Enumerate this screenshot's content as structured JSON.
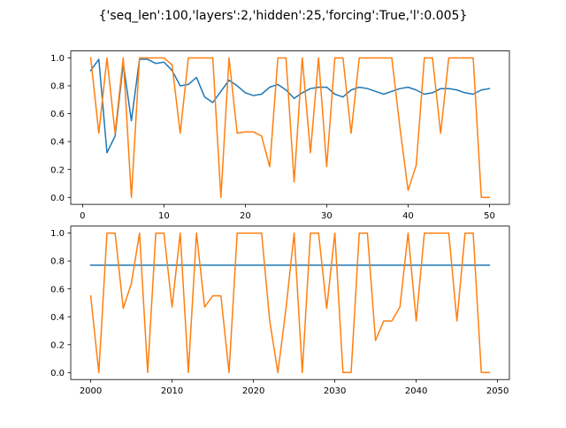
{
  "figure": {
    "title": "{'seq_len':100,'layers':2,'hidden':25,'forcing':True,'l':0.005}"
  },
  "colors": {
    "series1": "#1f77b4",
    "series2": "#ff7f0e",
    "axis": "#000000"
  },
  "chart_data": [
    {
      "type": "line",
      "title": "",
      "xlabel": "",
      "ylabel": "",
      "xlim": [
        -1.45,
        52.45
      ],
      "ylim": [
        -0.05,
        1.05
      ],
      "xticks": [
        0,
        10,
        20,
        30,
        40,
        50
      ],
      "yticks": [
        0.0,
        0.2,
        0.4,
        0.6,
        0.8,
        1.0
      ],
      "x": [
        1,
        2,
        3,
        4,
        5,
        6,
        7,
        8,
        9,
        10,
        11,
        12,
        13,
        14,
        15,
        16,
        17,
        18,
        19,
        20,
        21,
        22,
        23,
        24,
        25,
        26,
        27,
        28,
        29,
        30,
        31,
        32,
        33,
        34,
        35,
        36,
        37,
        38,
        39,
        40,
        41,
        42,
        43,
        44,
        45,
        46,
        47,
        48,
        49,
        50
      ],
      "series": [
        {
          "values": [
            0.91,
            0.99,
            0.32,
            0.44,
            0.96,
            0.55,
            0.99,
            0.99,
            0.96,
            0.97,
            0.91,
            0.8,
            0.81,
            0.86,
            0.72,
            0.68,
            0.76,
            0.84,
            0.8,
            0.75,
            0.73,
            0.74,
            0.79,
            0.81,
            0.77,
            0.71,
            0.75,
            0.78,
            0.79,
            0.79,
            0.74,
            0.72,
            0.77,
            0.79,
            0.78,
            0.76,
            0.74,
            0.76,
            0.78,
            0.79,
            0.77,
            0.74,
            0.75,
            0.78,
            0.78,
            0.77,
            0.75,
            0.74,
            0.77,
            0.78
          ]
        },
        {
          "values": [
            1.0,
            0.46,
            1.0,
            0.46,
            1.0,
            0.0,
            1.0,
            1.0,
            1.0,
            1.0,
            0.95,
            0.46,
            1.0,
            1.0,
            1.0,
            1.0,
            0.0,
            1.0,
            0.46,
            0.47,
            0.47,
            0.44,
            0.22,
            1.0,
            1.0,
            0.11,
            1.0,
            0.32,
            1.0,
            0.22,
            1.0,
            1.0,
            0.46,
            1.0,
            1.0,
            1.0,
            1.0,
            1.0,
            0.5,
            0.05,
            0.23,
            1.0,
            1.0,
            0.46,
            1.0,
            1.0,
            1.0,
            1.0,
            0.0,
            0.0
          ]
        }
      ]
    },
    {
      "type": "line",
      "title": "",
      "xlabel": "",
      "ylabel": "",
      "xlim": [
        1997.55,
        2051.45
      ],
      "ylim": [
        -0.05,
        1.05
      ],
      "xticks": [
        2000,
        2010,
        2020,
        2030,
        2040,
        2050
      ],
      "yticks": [
        0.0,
        0.2,
        0.4,
        0.6,
        0.8,
        1.0
      ],
      "x": [
        2000,
        2001,
        2002,
        2003,
        2004,
        2005,
        2006,
        2007,
        2008,
        2009,
        2010,
        2011,
        2012,
        2013,
        2014,
        2015,
        2016,
        2017,
        2018,
        2019,
        2020,
        2021,
        2022,
        2023,
        2024,
        2025,
        2026,
        2027,
        2028,
        2029,
        2030,
        2031,
        2032,
        2033,
        2034,
        2035,
        2036,
        2037,
        2038,
        2039,
        2040,
        2041,
        2042,
        2043,
        2044,
        2045,
        2046,
        2047,
        2048,
        2049
      ],
      "series": [
        {
          "values": [
            0.77,
            0.77,
            0.77,
            0.77,
            0.77,
            0.77,
            0.77,
            0.77,
            0.77,
            0.77,
            0.77,
            0.77,
            0.77,
            0.77,
            0.77,
            0.77,
            0.77,
            0.77,
            0.77,
            0.77,
            0.77,
            0.77,
            0.77,
            0.77,
            0.77,
            0.77,
            0.77,
            0.77,
            0.77,
            0.77,
            0.77,
            0.77,
            0.77,
            0.77,
            0.77,
            0.77,
            0.77,
            0.77,
            0.77,
            0.77,
            0.77,
            0.77,
            0.77,
            0.77,
            0.77,
            0.77,
            0.77,
            0.77,
            0.77,
            0.77
          ]
        },
        {
          "values": [
            0.55,
            0.0,
            1.0,
            1.0,
            0.46,
            0.64,
            1.0,
            0.0,
            1.0,
            1.0,
            0.47,
            1.0,
            0.0,
            1.0,
            0.47,
            0.55,
            0.55,
            0.0,
            1.0,
            1.0,
            1.0,
            1.0,
            0.37,
            0.0,
            0.46,
            1.0,
            0.0,
            1.0,
            1.0,
            0.46,
            1.0,
            0.0,
            0.0,
            1.0,
            1.0,
            0.23,
            0.37,
            0.37,
            0.47,
            1.0,
            0.37,
            1.0,
            1.0,
            1.0,
            1.0,
            0.37,
            1.0,
            1.0,
            0.0,
            0.0
          ]
        }
      ]
    }
  ]
}
